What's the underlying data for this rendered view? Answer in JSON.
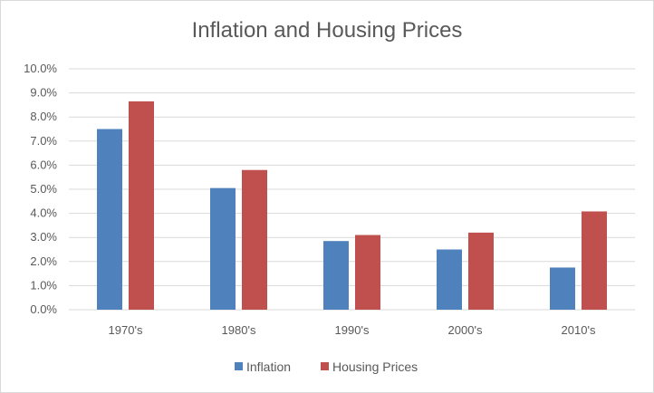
{
  "chart_data": {
    "type": "bar",
    "title": "Inflation and Housing Prices",
    "xlabel": "",
    "ylabel": "",
    "categories": [
      "1970's",
      "1980's",
      "1990's",
      "2000's",
      "2010's"
    ],
    "series": [
      {
        "name": "Inflation",
        "color": "#4f81bd",
        "values": [
          7.5,
          5.05,
          2.85,
          2.5,
          1.75
        ]
      },
      {
        "name": "Housing Prices",
        "color": "#c0504d",
        "values": [
          8.65,
          5.8,
          3.1,
          3.2,
          4.08
        ]
      }
    ],
    "ylim": [
      0,
      10
    ],
    "yticks": [
      "0.0%",
      "1.0%",
      "2.0%",
      "3.0%",
      "4.0%",
      "5.0%",
      "6.0%",
      "7.0%",
      "8.0%",
      "9.0%",
      "10.0%"
    ],
    "grid": true,
    "legend": "bottom"
  }
}
